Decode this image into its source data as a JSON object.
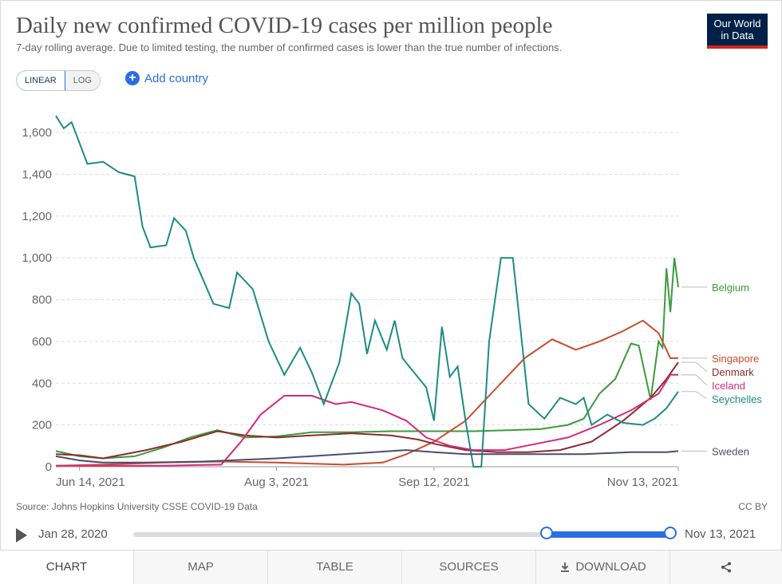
{
  "title": "Daily new confirmed COVID-19 cases per million people",
  "subtitle": "7-day rolling average. Due to limited testing, the number of confirmed cases is lower than the true number of infections.",
  "logo": {
    "line1": "Our World",
    "line2": "in Data"
  },
  "controls": {
    "linear_label": "LINEAR",
    "log_label": "LOG",
    "add_country_label": "Add country",
    "add_icon": "plus-circle-icon"
  },
  "chart_data": {
    "type": "line",
    "ylim": [
      0,
      1700
    ],
    "y_ticks": [
      0,
      200,
      400,
      600,
      800,
      1000,
      1200,
      1400,
      1600
    ],
    "y_tick_labels": [
      "0",
      "200",
      "400",
      "600",
      "800",
      "1,000",
      "1,200",
      "1,400",
      "1,600"
    ],
    "x_start": "2021-06-08",
    "x_end": "2021-11-13",
    "x_ticks": [
      "2021-06-14",
      "2021-08-03",
      "2021-09-12",
      "2021-11-13"
    ],
    "x_tick_labels": [
      "Jun 14, 2021",
      "Aug 3, 2021",
      "Sep 12, 2021",
      "Nov 13, 2021"
    ],
    "grid": true,
    "legend": "right",
    "series": [
      {
        "name": "Belgium",
        "color": "#3d9a3d",
        "points": [
          [
            "2021-06-08",
            75
          ],
          [
            "2021-06-14",
            50
          ],
          [
            "2021-06-20",
            40
          ],
          [
            "2021-06-28",
            50
          ],
          [
            "2021-07-05",
            90
          ],
          [
            "2021-07-12",
            140
          ],
          [
            "2021-07-19",
            175
          ],
          [
            "2021-07-26",
            140
          ],
          [
            "2021-08-03",
            145
          ],
          [
            "2021-08-12",
            165
          ],
          [
            "2021-08-22",
            165
          ],
          [
            "2021-09-01",
            170
          ],
          [
            "2021-09-12",
            170
          ],
          [
            "2021-09-22",
            170
          ],
          [
            "2021-10-01",
            175
          ],
          [
            "2021-10-09",
            180
          ],
          [
            "2021-10-16",
            200
          ],
          [
            "2021-10-20",
            230
          ],
          [
            "2021-10-24",
            350
          ],
          [
            "2021-10-28",
            420
          ],
          [
            "2021-11-01",
            590
          ],
          [
            "2021-11-03",
            580
          ],
          [
            "2021-11-06",
            320
          ],
          [
            "2021-11-08",
            600
          ],
          [
            "2021-11-09",
            570
          ],
          [
            "2021-11-10",
            950
          ],
          [
            "2021-11-11",
            740
          ],
          [
            "2021-11-12",
            1000
          ],
          [
            "2021-11-13",
            860
          ]
        ]
      },
      {
        "name": "Singapore",
        "color": "#cc4b2c",
        "points": [
          [
            "2021-06-08",
            5
          ],
          [
            "2021-06-20",
            10
          ],
          [
            "2021-07-05",
            20
          ],
          [
            "2021-07-20",
            25
          ],
          [
            "2021-08-03",
            20
          ],
          [
            "2021-08-20",
            10
          ],
          [
            "2021-08-30",
            20
          ],
          [
            "2021-09-05",
            60
          ],
          [
            "2021-09-12",
            120
          ],
          [
            "2021-09-20",
            220
          ],
          [
            "2021-09-28",
            380
          ],
          [
            "2021-10-05",
            520
          ],
          [
            "2021-10-12",
            610
          ],
          [
            "2021-10-18",
            560
          ],
          [
            "2021-10-24",
            600
          ],
          [
            "2021-10-30",
            650
          ],
          [
            "2021-11-04",
            700
          ],
          [
            "2021-11-08",
            640
          ],
          [
            "2021-11-11",
            520
          ],
          [
            "2021-11-13",
            520
          ]
        ]
      },
      {
        "name": "Denmark",
        "color": "#8b2c2c",
        "points": [
          [
            "2021-06-08",
            60
          ],
          [
            "2021-06-14",
            55
          ],
          [
            "2021-06-20",
            40
          ],
          [
            "2021-07-01",
            80
          ],
          [
            "2021-07-10",
            120
          ],
          [
            "2021-07-19",
            170
          ],
          [
            "2021-07-26",
            150
          ],
          [
            "2021-08-03",
            140
          ],
          [
            "2021-08-12",
            150
          ],
          [
            "2021-08-22",
            160
          ],
          [
            "2021-09-01",
            150
          ],
          [
            "2021-09-08",
            130
          ],
          [
            "2021-09-12",
            110
          ],
          [
            "2021-09-20",
            80
          ],
          [
            "2021-09-28",
            70
          ],
          [
            "2021-10-06",
            70
          ],
          [
            "2021-10-14",
            80
          ],
          [
            "2021-10-22",
            120
          ],
          [
            "2021-10-30",
            220
          ],
          [
            "2021-11-06",
            330
          ],
          [
            "2021-11-10",
            420
          ],
          [
            "2021-11-13",
            500
          ]
        ]
      },
      {
        "name": "Iceland",
        "color": "#d52a79",
        "points": [
          [
            "2021-06-08",
            5
          ],
          [
            "2021-06-20",
            5
          ],
          [
            "2021-07-05",
            5
          ],
          [
            "2021-07-20",
            10
          ],
          [
            "2021-07-25",
            120
          ],
          [
            "2021-07-30",
            250
          ],
          [
            "2021-08-05",
            340
          ],
          [
            "2021-08-12",
            340
          ],
          [
            "2021-08-18",
            300
          ],
          [
            "2021-08-22",
            310
          ],
          [
            "2021-08-30",
            270
          ],
          [
            "2021-09-05",
            220
          ],
          [
            "2021-09-10",
            140
          ],
          [
            "2021-09-16",
            100
          ],
          [
            "2021-09-22",
            80
          ],
          [
            "2021-09-30",
            80
          ],
          [
            "2021-10-08",
            110
          ],
          [
            "2021-10-16",
            140
          ],
          [
            "2021-10-24",
            200
          ],
          [
            "2021-11-01",
            270
          ],
          [
            "2021-11-08",
            350
          ],
          [
            "2021-11-11",
            440
          ],
          [
            "2021-11-13",
            440
          ]
        ]
      },
      {
        "name": "Seychelles",
        "color": "#1e8c83",
        "points": [
          [
            "2021-06-08",
            1680
          ],
          [
            "2021-06-10",
            1620
          ],
          [
            "2021-06-12",
            1650
          ],
          [
            "2021-06-16",
            1450
          ],
          [
            "2021-06-20",
            1460
          ],
          [
            "2021-06-24",
            1410
          ],
          [
            "2021-06-28",
            1390
          ],
          [
            "2021-06-30",
            1150
          ],
          [
            "2021-07-02",
            1050
          ],
          [
            "2021-07-06",
            1060
          ],
          [
            "2021-07-08",
            1190
          ],
          [
            "2021-07-11",
            1130
          ],
          [
            "2021-07-13",
            1000
          ],
          [
            "2021-07-18",
            780
          ],
          [
            "2021-07-22",
            760
          ],
          [
            "2021-07-24",
            930
          ],
          [
            "2021-07-28",
            850
          ],
          [
            "2021-08-01",
            600
          ],
          [
            "2021-08-05",
            440
          ],
          [
            "2021-08-09",
            570
          ],
          [
            "2021-08-12",
            450
          ],
          [
            "2021-08-15",
            300
          ],
          [
            "2021-08-19",
            500
          ],
          [
            "2021-08-22",
            830
          ],
          [
            "2021-08-24",
            780
          ],
          [
            "2021-08-26",
            540
          ],
          [
            "2021-08-28",
            700
          ],
          [
            "2021-08-31",
            560
          ],
          [
            "2021-09-02",
            700
          ],
          [
            "2021-09-04",
            520
          ],
          [
            "2021-09-07",
            450
          ],
          [
            "2021-09-10",
            380
          ],
          [
            "2021-09-12",
            220
          ],
          [
            "2021-09-14",
            670
          ],
          [
            "2021-09-16",
            430
          ],
          [
            "2021-09-18",
            480
          ],
          [
            "2021-09-20",
            220
          ],
          [
            "2021-09-22",
            0
          ],
          [
            "2021-09-24",
            0
          ],
          [
            "2021-09-26",
            600
          ],
          [
            "2021-09-29",
            1000
          ],
          [
            "2021-10-02",
            1000
          ],
          [
            "2021-10-06",
            300
          ],
          [
            "2021-10-10",
            230
          ],
          [
            "2021-10-14",
            330
          ],
          [
            "2021-10-18",
            300
          ],
          [
            "2021-10-20",
            330
          ],
          [
            "2021-10-22",
            200
          ],
          [
            "2021-10-26",
            250
          ],
          [
            "2021-10-30",
            210
          ],
          [
            "2021-11-04",
            200
          ],
          [
            "2021-11-07",
            230
          ],
          [
            "2021-11-10",
            280
          ],
          [
            "2021-11-13",
            360
          ]
        ]
      },
      {
        "name": "Sweden",
        "color": "#4a4e6e",
        "points": [
          [
            "2021-06-08",
            50
          ],
          [
            "2021-06-14",
            30
          ],
          [
            "2021-06-20",
            20
          ],
          [
            "2021-07-01",
            20
          ],
          [
            "2021-07-15",
            25
          ],
          [
            "2021-08-03",
            40
          ],
          [
            "2021-08-20",
            60
          ],
          [
            "2021-09-05",
            80
          ],
          [
            "2021-09-12",
            70
          ],
          [
            "2021-09-20",
            60
          ],
          [
            "2021-10-01",
            60
          ],
          [
            "2021-10-10",
            60
          ],
          [
            "2021-10-20",
            60
          ],
          [
            "2021-11-01",
            70
          ],
          [
            "2021-11-10",
            70
          ],
          [
            "2021-11-13",
            75
          ]
        ]
      }
    ]
  },
  "footer": {
    "source": "Source: Johns Hopkins University CSSE COVID-19 Data",
    "license": "CC BY"
  },
  "timeline": {
    "start_label": "Jan 28, 2020",
    "end_label": "Nov 13, 2021",
    "range_start": 0.77,
    "range_end": 1.0
  },
  "tabs": [
    {
      "label": "CHART",
      "active": true
    },
    {
      "label": "MAP",
      "active": false
    },
    {
      "label": "TABLE",
      "active": false
    },
    {
      "label": "SOURCES",
      "active": false
    },
    {
      "label": "DOWNLOAD",
      "active": false,
      "icon": "download-icon"
    },
    {
      "label": "",
      "icon": "share-icon"
    }
  ]
}
